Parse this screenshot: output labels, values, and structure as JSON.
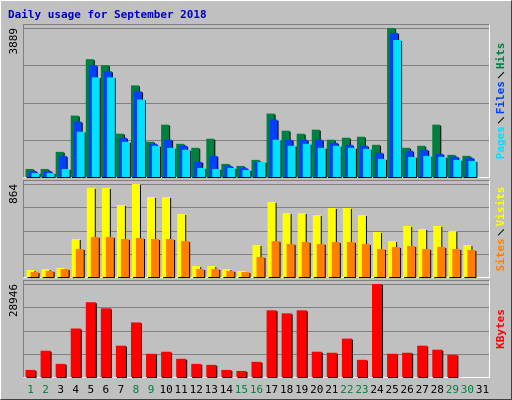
{
  "chart_data": {
    "type": "bar",
    "title": "Daily usage for September 2018",
    "categories": [
      "1",
      "2",
      "3",
      "4",
      "5",
      "6",
      "7",
      "8",
      "9",
      "10",
      "11",
      "12",
      "13",
      "14",
      "15",
      "16",
      "17",
      "18",
      "19",
      "20",
      "21",
      "22",
      "23",
      "24",
      "25",
      "26",
      "27",
      "28",
      "29",
      "30",
      "31"
    ],
    "category_colors": [
      "#008040",
      "#008040",
      "#000000",
      "#000000",
      "#000000",
      "#000000",
      "#000000",
      "#008040",
      "#008040",
      "#000000",
      "#000000",
      "#000000",
      "#000000",
      "#000000",
      "#008040",
      "#008040",
      "#000000",
      "#000000",
      "#000000",
      "#000000",
      "#000000",
      "#008040",
      "#008040",
      "#000000",
      "#000000",
      "#000000",
      "#000000",
      "#000000",
      "#008040",
      "#008040",
      "#000000"
    ],
    "grid": true,
    "panels": [
      {
        "ylim": [
          0,
          3889
        ],
        "yticks": [
          3889
        ],
        "series": [
          {
            "name": "Hits",
            "color": "#008040",
            "values": [
              210,
              210,
              657,
              1603,
              3075,
              2917,
              1130,
              2391,
              920,
              1366,
              867,
              762,
              999,
              342,
              289,
              447,
              1656,
              1209,
              1130,
              1235,
              973,
              1025,
              1051,
              841,
              3889,
              762,
              815,
              1366,
              578,
              552,
              null
            ]
          },
          {
            "name": "Files",
            "color": "#0040ff",
            "values": [
              158,
              158,
              552,
              1445,
              2917,
              2760,
              1025,
              2234,
              867,
              973,
              815,
              394,
              552,
              289,
              237,
              394,
              1498,
              973,
              973,
              973,
              894,
              841,
              815,
              631,
              3760,
              684,
              710,
              605,
              526,
              500,
              null
            ]
          },
          {
            "name": "Pages",
            "color": "#00e0ff",
            "values": [
              105,
              105,
              210,
              1183,
              2602,
              2602,
              920,
              2023,
              815,
              762,
              710,
              237,
              210,
              237,
              184,
              394,
              973,
              815,
              867,
              762,
              815,
              762,
              736,
              473,
              3576,
              526,
              552,
              526,
              447,
              420,
              null
            ]
          }
        ]
      },
      {
        "ylim": [
          0,
          864
        ],
        "yticks": [
          864
        ],
        "series": [
          {
            "name": "Visits",
            "color": "#ffff00",
            "values": [
              65,
              74,
              84,
              353,
              827,
              827,
              669,
              864,
              743,
              743,
              585,
              102,
              102,
              74,
              56,
              297,
              697,
              594,
              594,
              576,
              641,
              641,
              576,
              418,
              334,
              474,
              446,
              474,
              427,
              297,
              null
            ]
          },
          {
            "name": "Sites",
            "color": "#ff8000",
            "values": [
              46,
              56,
              74,
              260,
              372,
              372,
              353,
              362,
              353,
              353,
              334,
              74,
              74,
              56,
              46,
              186,
              334,
              307,
              325,
              307,
              325,
              325,
              307,
              260,
              279,
              288,
              260,
              279,
              260,
              251,
              null
            ]
          }
        ]
      },
      {
        "ylim": [
          0,
          28946
        ],
        "yticks": [
          28946
        ],
        "series": [
          {
            "name": "KBytes",
            "color": "#ff0000",
            "values": [
              2200,
              8180,
              4090,
              15100,
              23280,
              21390,
              9750,
              16990,
              7240,
              7870,
              5660,
              4090,
              3780,
              2200,
              1890,
              4720,
              20760,
              19820,
              20760,
              7870,
              7550,
              11950,
              5350,
              28946,
              7240,
              7550,
              9750,
              8500,
              6920,
              null,
              null
            ]
          }
        ]
      }
    ]
  }
}
